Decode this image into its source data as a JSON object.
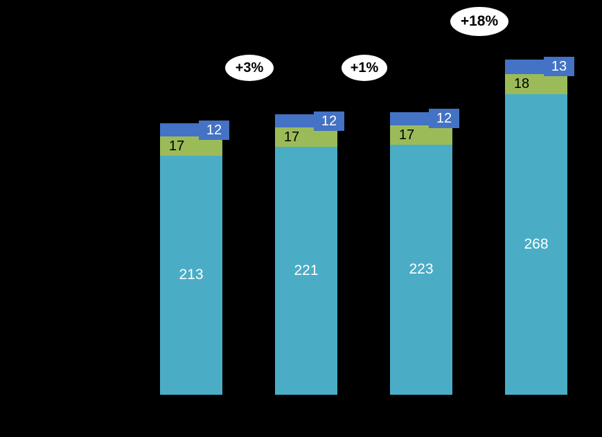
{
  "chart_data": {
    "type": "bar",
    "stacked": true,
    "background_color": "#000000",
    "categories": [
      "",
      "",
      "",
      ""
    ],
    "series": [
      {
        "name": "bottom-segment",
        "color": "#4BACC6",
        "label_color": "#FFFFFF",
        "values": [
          213,
          221,
          223,
          268
        ]
      },
      {
        "name": "middle-segment",
        "color": "#9BBB59",
        "label_color": "#000000",
        "values": [
          17,
          17,
          17,
          18
        ]
      },
      {
        "name": "top-segment",
        "color": "#4472C4",
        "label_color": "#FFFFFF",
        "values": [
          12,
          12,
          12,
          13
        ]
      }
    ],
    "annotations": [
      {
        "label": "+3%",
        "between_bars": [
          1,
          2
        ]
      },
      {
        "label": "+1%",
        "between_bars": [
          2,
          3
        ]
      },
      {
        "label": "+18%",
        "between_bars": [
          3,
          4
        ]
      }
    ],
    "legend": "none",
    "axis_labels_visible": false
  }
}
